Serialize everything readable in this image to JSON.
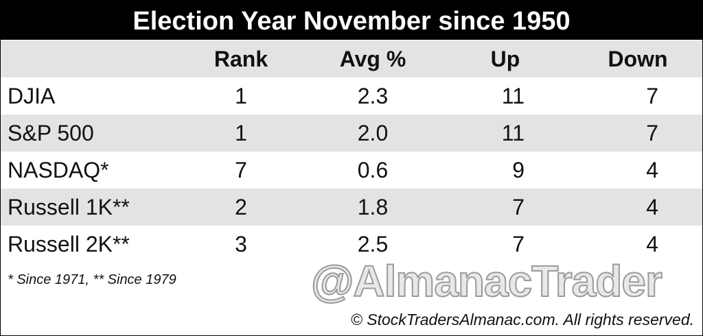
{
  "header": {
    "title": "Election Year November since 1950"
  },
  "table": {
    "columns": [
      "",
      "Rank",
      "Avg %",
      "Up",
      "Down"
    ],
    "rows": [
      [
        "DJIA",
        "1",
        "2.3",
        "11",
        "7"
      ],
      [
        "S&P 500",
        "1",
        "2.0",
        "11",
        "7"
      ],
      [
        "NASDAQ*",
        "7",
        "0.6",
        "9",
        "4"
      ],
      [
        "Russell 1K**",
        "2",
        "1.8",
        "7",
        "4"
      ],
      [
        "Russell 2K**",
        "3",
        "2.5",
        "7",
        "4"
      ]
    ]
  },
  "footnote": "* Since 1971, ** Since 1979",
  "watermark": "@AlmanacTrader",
  "copyright": "© StockTradersAlmanac.com. All rights reserved."
}
